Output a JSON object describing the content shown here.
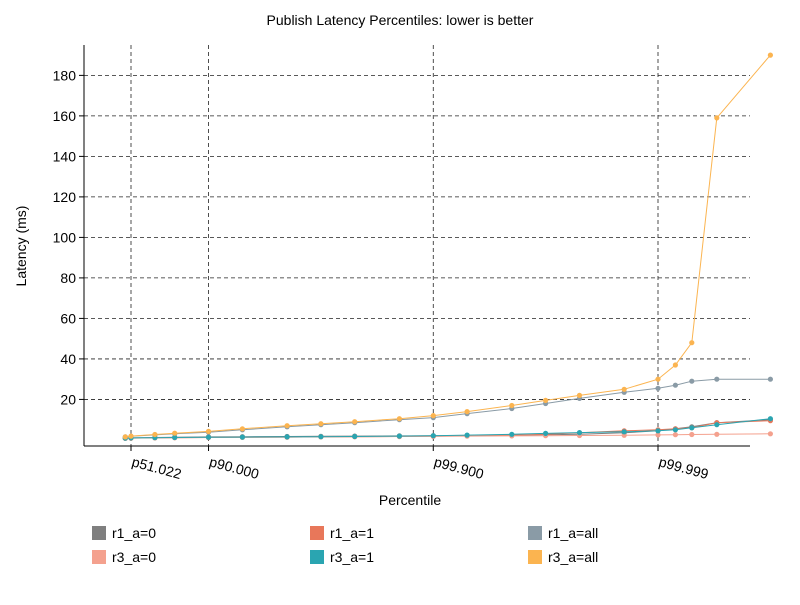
{
  "chart_data": {
    "type": "line",
    "title": "Publish Latency Percentiles: lower is better",
    "xlabel": "Percentile",
    "ylabel": "Latency (ms)",
    "x_scale": "log(1/(1-p))",
    "ylim": [
      -3,
      195
    ],
    "yticks": [
      20,
      40,
      60,
      80,
      100,
      120,
      140,
      160,
      180
    ],
    "xticks": [
      {
        "label": "p51.022",
        "value": 51.022
      },
      {
        "label": "p90.000",
        "value": 90.0
      },
      {
        "label": "p99.900",
        "value": 99.9
      },
      {
        "label": "p99.999",
        "value": 99.999
      }
    ],
    "grid": "dashed at ticks",
    "legend": "bottom",
    "series": [
      {
        "name": "r1_a=0",
        "color": "#7f7f7f",
        "x": [
          45,
          51.022,
          70,
          80,
          90,
          95,
          98,
          99,
          99.5,
          99.8,
          99.9,
          99.95,
          99.98,
          99.99,
          99.995,
          99.998,
          99.999,
          99.9993,
          99.9995,
          99.9997,
          99.9999
        ],
        "y": [
          0.8,
          1.0,
          1.2,
          1.3,
          1.5,
          1.6,
          1.7,
          1.8,
          1.9,
          2.0,
          2.1,
          2.2,
          2.4,
          2.6,
          2.8,
          3.5,
          4.5,
          5.5,
          6.5,
          8.5,
          10
        ]
      },
      {
        "name": "r1_a=1",
        "color": "#e8775a",
        "x": [
          45,
          51.022,
          70,
          80,
          90,
          95,
          98,
          99,
          99.5,
          99.8,
          99.9,
          99.95,
          99.98,
          99.99,
          99.995,
          99.998,
          99.999,
          99.9993,
          99.9995,
          99.9997,
          99.9999
        ],
        "y": [
          0.8,
          0.9,
          1.0,
          1.1,
          1.2,
          1.3,
          1.4,
          1.5,
          1.6,
          1.7,
          1.8,
          2.0,
          2.3,
          2.8,
          3.5,
          4.5,
          5.0,
          5.5,
          6.0,
          8.5,
          9.5
        ]
      },
      {
        "name": "r1_a=all",
        "color": "#8a9ba6",
        "x": [
          45,
          51.022,
          70,
          80,
          90,
          95,
          98,
          99,
          99.5,
          99.8,
          99.9,
          99.95,
          99.98,
          99.99,
          99.995,
          99.998,
          99.999,
          99.9993,
          99.9995,
          99.9997,
          99.9999
        ],
        "y": [
          1.5,
          1.8,
          2.5,
          3.0,
          3.8,
          5.0,
          6.5,
          7.5,
          8.5,
          10,
          11,
          13,
          15.5,
          18,
          20.5,
          23.5,
          25.5,
          27,
          29,
          30,
          30
        ]
      },
      {
        "name": "r3_a=0",
        "color": "#f4a18e",
        "x": [
          45,
          51.022,
          70,
          80,
          90,
          95,
          98,
          99,
          99.5,
          99.8,
          99.9,
          99.95,
          99.98,
          99.99,
          99.995,
          99.998,
          99.999,
          99.9993,
          99.9995,
          99.9997,
          99.9999
        ],
        "y": [
          0.8,
          0.9,
          1.0,
          1.1,
          1.2,
          1.3,
          1.4,
          1.5,
          1.6,
          1.7,
          1.8,
          1.9,
          2.0,
          2.1,
          2.2,
          2.3,
          2.5,
          2.6,
          2.7,
          2.8,
          3.0
        ]
      },
      {
        "name": "r3_a=1",
        "color": "#2aa5b1",
        "x": [
          45,
          51.022,
          70,
          80,
          90,
          95,
          98,
          99,
          99.5,
          99.8,
          99.9,
          99.95,
          99.98,
          99.99,
          99.995,
          99.998,
          99.999,
          99.9993,
          99.9995,
          99.9997,
          99.9999
        ],
        "y": [
          0.9,
          1.0,
          1.1,
          1.2,
          1.3,
          1.4,
          1.5,
          1.6,
          1.7,
          1.9,
          2.1,
          2.4,
          2.8,
          3.2,
          3.6,
          4.0,
          4.5,
          5.0,
          6.0,
          7.5,
          10.5
        ]
      },
      {
        "name": "r3_a=all",
        "color": "#fbb450",
        "x": [
          45,
          51.022,
          70,
          80,
          90,
          95,
          98,
          99,
          99.5,
          99.8,
          99.9,
          99.95,
          99.98,
          99.99,
          99.995,
          99.998,
          99.999,
          99.9993,
          99.9995,
          99.9997,
          99.9999
        ],
        "y": [
          1.5,
          1.9,
          2.7,
          3.3,
          4.2,
          5.5,
          7.0,
          8.0,
          9.0,
          10.5,
          12,
          14,
          17,
          19.5,
          22,
          25,
          30,
          37,
          48,
          159,
          190
        ]
      }
    ]
  }
}
